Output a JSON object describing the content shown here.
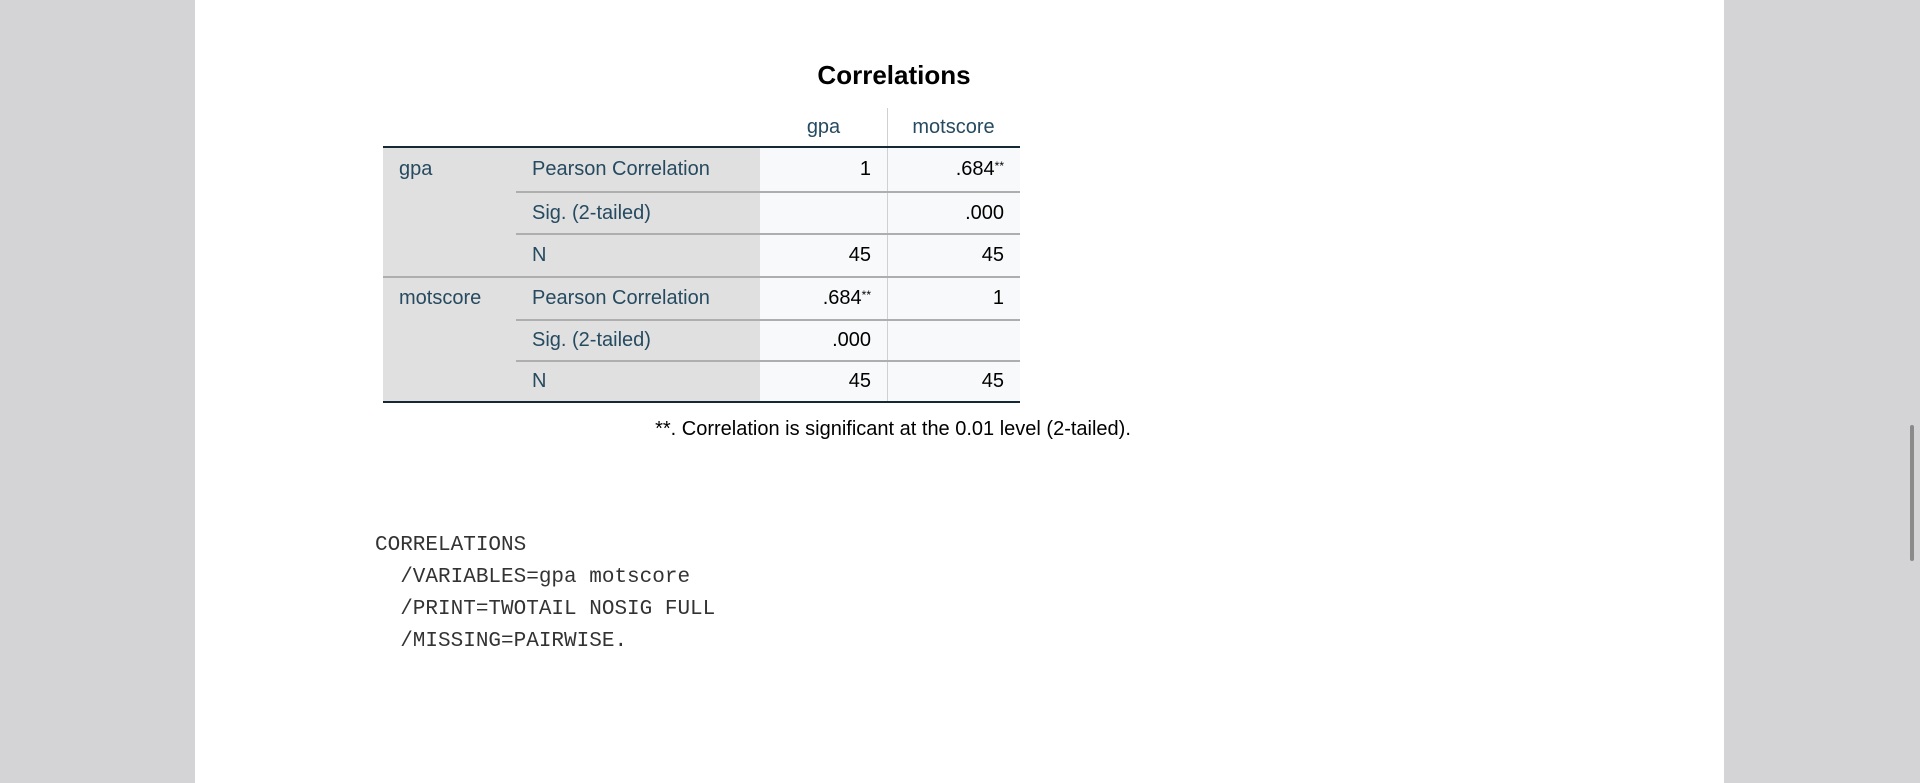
{
  "title": "Correlations",
  "columns": [
    "gpa",
    "motscore"
  ],
  "rows": [
    {
      "group": "gpa",
      "stat": "Pearson Correlation",
      "values": [
        "1",
        ".684"
      ],
      "notes": [
        null,
        "**"
      ]
    },
    {
      "group": null,
      "stat": "Sig. (2-tailed)",
      "values": [
        null,
        ".000"
      ],
      "notes": [
        null,
        null
      ]
    },
    {
      "group": null,
      "stat": "N",
      "values": [
        "45",
        "45"
      ],
      "notes": [
        null,
        null
      ]
    },
    {
      "group": "motscore",
      "stat": "Pearson Correlation",
      "values": [
        ".684",
        "1"
      ],
      "notes": [
        "**",
        null
      ]
    },
    {
      "group": null,
      "stat": "Sig. (2-tailed)",
      "values": [
        ".000",
        null
      ],
      "notes": [
        null,
        null
      ]
    },
    {
      "group": null,
      "stat": "N",
      "values": [
        "45",
        "45"
      ],
      "notes": [
        null,
        null
      ]
    }
  ],
  "footnote": "**. Correlation is significant at the 0.01 level (2-tailed).",
  "syntax": [
    "CORRELATIONS",
    "  /VARIABLES=gpa motscore",
    "  /PRINT=TWOTAIL NOSIG FULL",
    "  /MISSING=PAIRWISE."
  ]
}
